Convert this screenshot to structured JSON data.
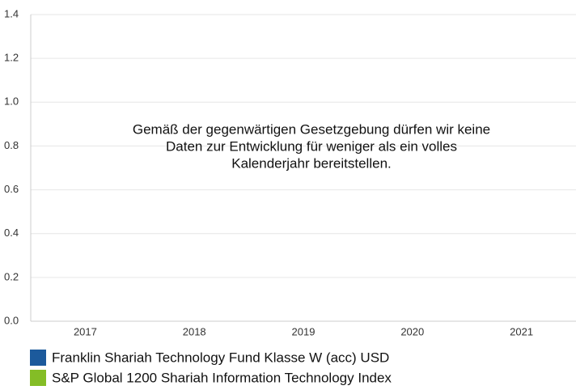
{
  "chart_data": {
    "type": "bar",
    "categories": [
      "2017",
      "2018",
      "2019",
      "2020",
      "2021"
    ],
    "series": [
      {
        "name": "Franklin Shariah Technology Fund Klasse W (acc) USD",
        "color": "#1c5a9c",
        "values": [
          null,
          null,
          null,
          null,
          null
        ]
      },
      {
        "name": "S&P Global 1200 Shariah Information Technology Index",
        "color": "#84bd26",
        "values": [
          null,
          null,
          null,
          null,
          null
        ]
      }
    ],
    "ylim": [
      0,
      1.4
    ],
    "yticks": [
      {
        "value": 0,
        "label": "0.0"
      },
      0.2,
      0.4,
      0.6,
      0.8,
      {
        "value": 1,
        "label": "1.0"
      },
      1.2,
      1.4
    ],
    "grid": true,
    "annotation": [
      "Gemäß der gegenwärtigen Gesetzgebung dürfen wir keine",
      "Daten zur Entwicklung für weniger als ein volles",
      "Kalenderjahr bereitstellen."
    ]
  }
}
